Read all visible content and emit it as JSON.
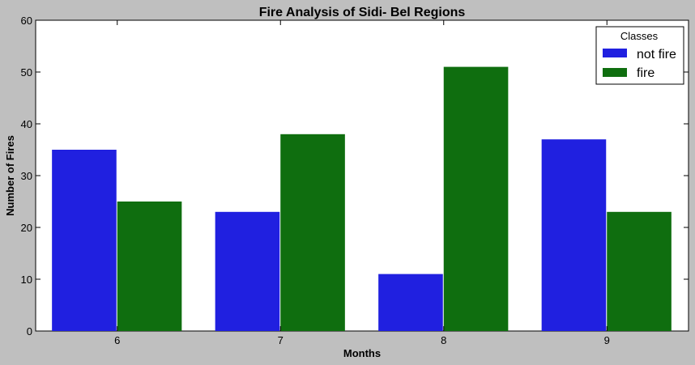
{
  "chart_data": {
    "type": "bar",
    "title": "Fire Analysis of Sidi- Bel Regions",
    "xlabel": "Months",
    "ylabel": "Number of Fires",
    "categories": [
      "6",
      "7",
      "8",
      "9"
    ],
    "series": [
      {
        "name": "not fire",
        "color": "#2020e0",
        "values": [
          35,
          23,
          11,
          37
        ]
      },
      {
        "name": "fire",
        "color": "#0f6e0f",
        "values": [
          25,
          38,
          51,
          23
        ]
      }
    ],
    "ylim": [
      0,
      60
    ],
    "yticks": [
      0,
      10,
      20,
      30,
      40,
      50,
      60
    ],
    "grid": false,
    "legend": {
      "title": "Classes",
      "placement": "top-right"
    }
  }
}
